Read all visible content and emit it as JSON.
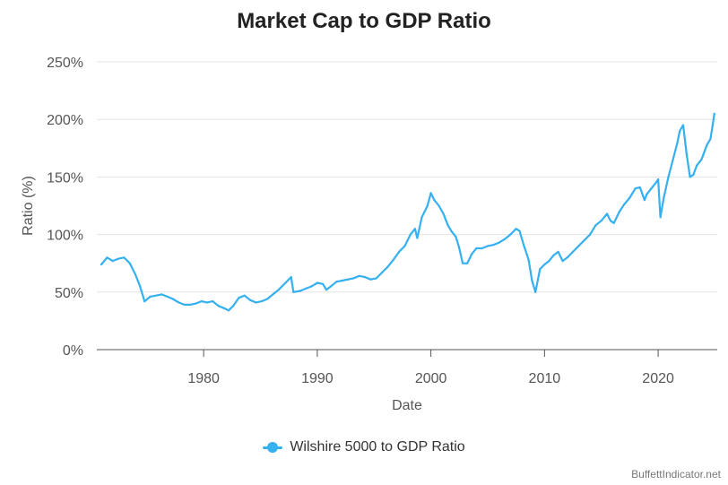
{
  "chart_data": {
    "type": "line",
    "title": "Market Cap to GDP Ratio",
    "xlabel": "Date",
    "ylabel": "Ratio (%)",
    "xlim": [
      1970.6,
      2025.2
    ],
    "ylim": [
      0,
      250
    ],
    "x_ticks": [
      1980,
      1990,
      2000,
      2010,
      2020
    ],
    "x_tick_labels": [
      "1980",
      "1990",
      "2000",
      "2010",
      "2020"
    ],
    "y_ticks": [
      0,
      50,
      100,
      150,
      200,
      250
    ],
    "y_tick_labels": [
      "0%",
      "50%",
      "100%",
      "150%",
      "200%",
      "250%"
    ],
    "grid": "horizontal",
    "legend_position": "bottom-center",
    "series": [
      {
        "name": "Wilshire 5000 to GDP Ratio",
        "color": "#35b0f0",
        "x": [
          1971.0,
          1971.5,
          1972.0,
          1972.5,
          1973.0,
          1973.5,
          1974.0,
          1974.4,
          1974.8,
          1975.3,
          1975.8,
          1976.3,
          1976.8,
          1977.3,
          1977.8,
          1978.3,
          1978.8,
          1979.3,
          1979.8,
          1980.3,
          1980.8,
          1981.3,
          1981.8,
          1982.2,
          1982.6,
          1983.1,
          1983.6,
          1984.1,
          1984.6,
          1985.1,
          1985.6,
          1986.1,
          1986.6,
          1987.2,
          1987.7,
          1987.9,
          1988.5,
          1989.0,
          1989.5,
          1990.0,
          1990.5,
          1990.8,
          1991.2,
          1991.7,
          1992.2,
          1992.7,
          1993.2,
          1993.7,
          1994.2,
          1994.7,
          1995.2,
          1995.7,
          1996.2,
          1996.7,
          1997.2,
          1997.7,
          1998.2,
          1998.6,
          1998.8,
          1999.2,
          1999.7,
          2000.0,
          2000.3,
          2000.7,
          2001.1,
          2001.5,
          2001.8,
          2002.2,
          2002.5,
          2002.8,
          2003.2,
          2003.6,
          2004.0,
          2004.5,
          2005.0,
          2005.5,
          2006.0,
          2006.5,
          2007.0,
          2007.5,
          2007.8,
          2008.2,
          2008.6,
          2008.9,
          2009.2,
          2009.6,
          2010.0,
          2010.4,
          2010.8,
          2011.2,
          2011.6,
          2012.0,
          2012.5,
          2013.0,
          2013.5,
          2014.0,
          2014.5,
          2015.0,
          2015.5,
          2015.8,
          2016.1,
          2016.6,
          2017.0,
          2017.5,
          2018.0,
          2018.4,
          2018.8,
          2019.0,
          2019.4,
          2019.8,
          2020.0,
          2020.2,
          2020.5,
          2020.9,
          2021.3,
          2021.7,
          2021.9,
          2022.2,
          2022.5,
          2022.8,
          2023.1,
          2023.4,
          2023.8,
          2024.0,
          2024.3,
          2024.6,
          2024.8,
          2024.95
        ],
        "y": [
          74,
          80,
          77,
          79,
          80,
          75,
          65,
          55,
          42,
          46,
          47,
          48,
          46,
          44,
          41,
          39,
          39,
          40,
          42,
          41,
          42,
          38,
          36,
          34,
          38,
          45,
          47,
          43,
          41,
          42,
          44,
          48,
          52,
          58,
          63,
          50,
          51,
          53,
          55,
          58,
          57,
          52,
          55,
          59,
          60,
          61,
          62,
          64,
          63,
          61,
          62,
          67,
          72,
          78,
          85,
          90,
          100,
          105,
          97,
          115,
          125,
          136,
          130,
          125,
          118,
          108,
          103,
          98,
          88,
          75,
          75,
          83,
          88,
          88,
          90,
          91,
          93,
          96,
          100,
          105,
          103,
          90,
          78,
          60,
          50,
          70,
          74,
          77,
          82,
          85,
          77,
          80,
          85,
          90,
          95,
          100,
          108,
          112,
          118,
          112,
          110,
          120,
          126,
          132,
          140,
          141,
          130,
          135,
          140,
          145,
          148,
          115,
          132,
          150,
          165,
          180,
          190,
          195,
          170,
          150,
          152,
          160,
          165,
          170,
          178,
          183,
          195,
          205
        ]
      }
    ]
  },
  "source_note": "BuffettIndicator.net"
}
